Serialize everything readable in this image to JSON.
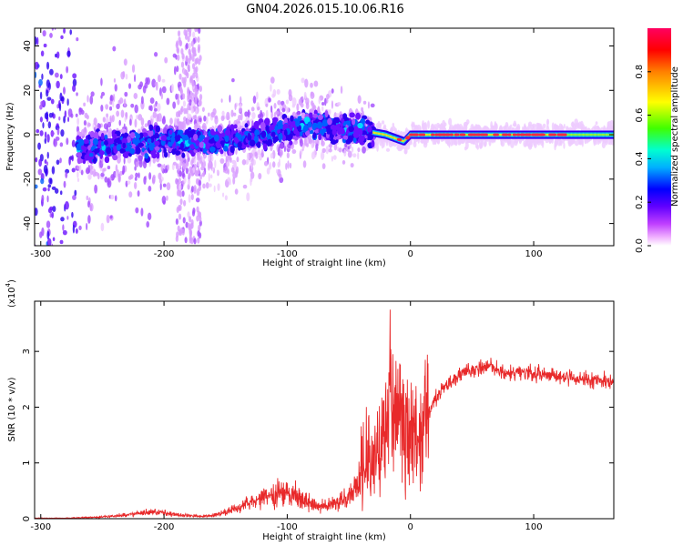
{
  "title": "GN04.2026.015.10.06.R16",
  "colors": {
    "snr_line": "#e8292a",
    "colormap": [
      "#ffffff",
      "#ff00ff",
      "#7000ff",
      "#0000ff",
      "#00c8ff",
      "#00ff60",
      "#ffff00",
      "#ff8000",
      "#ff0000",
      "#ff0060"
    ]
  },
  "chart_data": [
    {
      "type": "heatmap",
      "name": "spectrogram",
      "title": "GN04.2026.015.10.06.R16",
      "xlabel": "Height of straight line (km)",
      "ylabel": "Frequency (Hz)",
      "xlim": [
        -305,
        165
      ],
      "ylim": [
        -50,
        48
      ],
      "xticks": [
        -300,
        -200,
        -100,
        0,
        100
      ],
      "yticks": [
        -40,
        -20,
        0,
        20,
        40
      ],
      "colorbar": {
        "label": "Normalized spectral amplitude",
        "range": [
          0,
          1
        ],
        "ticks": [
          "0.0",
          "0.2",
          "0.4",
          "0.6",
          "0.8"
        ],
        "tick_values": [
          0.0,
          0.2,
          0.4,
          0.6,
          0.8
        ]
      },
      "ridge": {
        "x": [
          -270,
          -250,
          -225,
          -200,
          -180,
          -160,
          -140,
          -120,
          -100,
          -80,
          -60,
          -45,
          -35,
          -30,
          -20,
          -10,
          -5,
          0,
          20,
          50,
          100,
          165
        ],
        "y": [
          -6,
          -5,
          -4,
          -3,
          -3,
          -3,
          -2,
          0,
          2,
          5,
          3,
          2,
          2,
          1,
          0,
          -2,
          -3,
          0,
          0,
          0,
          0,
          0
        ]
      }
    },
    {
      "type": "line",
      "name": "snr",
      "xlabel": "Height of straight line (km)",
      "ylabel": "SNR (10 * v/v)",
      "yscale_label": "(x10",
      "yscale_exp": "4",
      "xlim": [
        -305,
        165
      ],
      "ylim": [
        0,
        3.9
      ],
      "xticks": [
        -300,
        -200,
        -100,
        0,
        100
      ],
      "yticks": [
        0,
        1,
        2,
        3
      ],
      "series": [
        {
          "x": [
            -305,
            -280,
            -250,
            -230,
            -215,
            -200,
            -185,
            -170,
            -160,
            -150,
            -140,
            -130,
            -120,
            -110,
            -100,
            -90,
            -80,
            -70,
            -60,
            -50,
            -45,
            -40,
            -35,
            -30,
            -25,
            -20,
            -17,
            -15,
            -12,
            -8,
            -5,
            -2,
            0,
            5,
            10,
            15,
            20,
            30,
            40,
            50,
            60,
            65,
            70,
            80,
            100,
            120,
            140,
            165
          ],
          "y": [
            0.01,
            0.01,
            0.03,
            0.07,
            0.11,
            0.1,
            0.06,
            0.04,
            0.06,
            0.12,
            0.2,
            0.28,
            0.36,
            0.42,
            0.48,
            0.38,
            0.26,
            0.22,
            0.28,
            0.4,
            0.55,
            0.75,
            0.95,
            1.1,
            1.3,
            1.55,
            1.8,
            2.0,
            1.9,
            1.75,
            1.6,
            1.4,
            1.5,
            1.45,
            1.6,
            1.9,
            2.15,
            2.4,
            2.6,
            2.65,
            2.7,
            2.75,
            2.65,
            2.6,
            2.6,
            2.55,
            2.5,
            2.45
          ]
        }
      ]
    }
  ]
}
